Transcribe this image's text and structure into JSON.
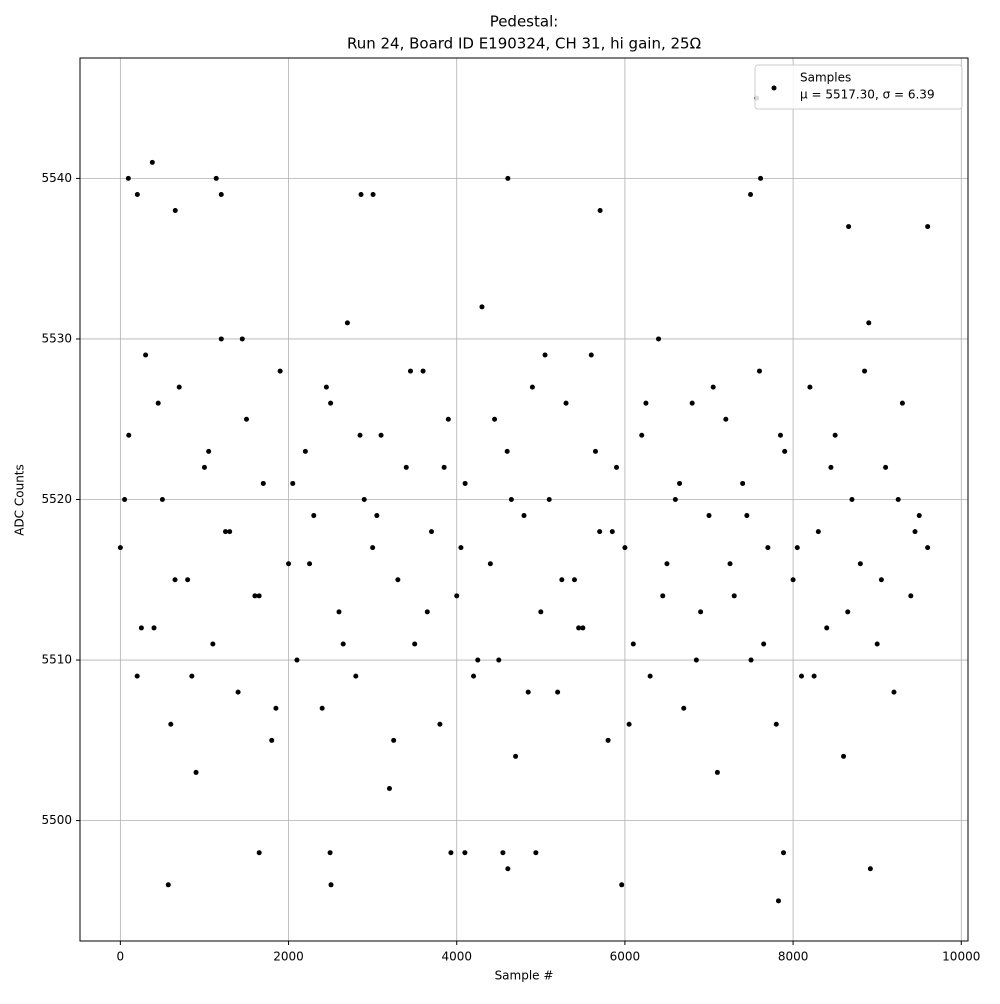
{
  "chart_data": {
    "type": "scatter",
    "title": "Pedestal:",
    "subtitle": "Run 24, Board ID E190324, CH 31, hi gain, 25Ω",
    "x_label": "Sample #",
    "y_label": "ADC Counts",
    "xlim": [
      -480,
      10080
    ],
    "ylim": [
      5492.5,
      5547.5
    ],
    "xticks": [
      0,
      2000,
      4000,
      6000,
      8000,
      10000
    ],
    "yticks": [
      5500,
      5510,
      5520,
      5530,
      5540
    ],
    "grid": true,
    "legend": "upper right",
    "legend_note": "μ = 5517.30, σ = 6.39",
    "x": [
      0,
      100,
      200,
      300,
      400,
      500,
      600,
      700,
      800,
      900,
      1000,
      1100,
      1200,
      1300,
      1400,
      1500,
      1600,
      1700,
      1800,
      1900,
      2000,
      2100,
      2200,
      2300,
      2400,
      2500,
      2600,
      2700,
      2800,
      2900,
      3000,
      3100,
      3200,
      3300,
      3400,
      3500,
      3600,
      3700,
      3800,
      3900,
      4000,
      4100,
      4200,
      4300,
      4400,
      4500,
      4600,
      4700,
      4800,
      4900,
      5000,
      5100,
      5200,
      5300,
      5400,
      5500,
      5600,
      5700,
      5800,
      5900,
      6000,
      6100,
      6200,
      6300,
      6400,
      6500,
      6600,
      6700,
      6800,
      6900,
      7000,
      7100,
      7200,
      7300,
      7400,
      7500,
      7600,
      7700,
      7800,
      7900,
      8000,
      8100,
      8200,
      8300,
      8400,
      8500,
      8600,
      8700,
      8800,
      8900,
      9000,
      9100,
      9200,
      9300,
      9400,
      9500,
      9600,
      50,
      250,
      450,
      650,
      850,
      1050,
      1250,
      1450,
      1650,
      1850,
      2050,
      2250,
      2450,
      2650,
      2850,
      3050,
      3250,
      3450,
      3650,
      3850,
      4050,
      4250,
      4450,
      4650,
      4850,
      5050,
      5250,
      5450,
      5650,
      5850,
      6050,
      6250,
      6450,
      6650,
      6850,
      7050,
      7250,
      7450,
      7650,
      7850,
      8050,
      8250,
      8450,
      8650,
      8850,
      9050,
      9250,
      9450,
      95,
      380,
      1140,
      4608,
      7565,
      7613,
      570,
      2505,
      5962,
      7826,
      8919,
      4608,
      1651,
      2494,
      3931,
      4097,
      4549,
      4941,
      7886,
      202,
      2862,
      3005,
      7494,
      1200,
      653,
      5705,
      9600,
      8660
    ],
    "series": [
      {
        "name": "Samples",
        "color": "#000000",
        "values": [
          5517,
          5524,
          5509,
          5529,
          5512,
          5520,
          5506,
          5527,
          5515,
          5503,
          5522,
          5511,
          5530,
          5518,
          5508,
          5525,
          5514,
          5521,
          5505,
          5528,
          5516,
          5510,
          5523,
          5519,
          5507,
          5526,
          5513,
          5531,
          5509,
          5520,
          5517,
          5524,
          5502,
          5515,
          5522,
          5511,
          5528,
          5518,
          5506,
          5525,
          5514,
          5521,
          5509,
          5532,
          5516,
          5510,
          5523,
          5504,
          5519,
          5527,
          5513,
          5520,
          5508,
          5526,
          5515,
          5512,
          5529,
          5518,
          5505,
          5522,
          5517,
          5511,
          5524,
          5509,
          5530,
          5516,
          5520,
          5507,
          5526,
          5513,
          5519,
          5503,
          5525,
          5514,
          5521,
          5510,
          5528,
          5517,
          5506,
          5523,
          5515,
          5509,
          5527,
          5518,
          5512,
          5524,
          5504,
          5520,
          5516,
          5531,
          5511,
          5522,
          5508,
          5526,
          5514,
          5519,
          5517,
          5520,
          5512,
          5526,
          5515,
          5509,
          5523,
          5518,
          5530,
          5514,
          5507,
          5521,
          5516,
          5527,
          5511,
          5524,
          5519,
          5505,
          5528,
          5513,
          5522,
          5517,
          5510,
          5525,
          5520,
          5508,
          5529,
          5515,
          5512,
          5523,
          5518,
          5506,
          5526,
          5514,
          5521,
          5510,
          5527,
          5516,
          5519,
          5511,
          5524,
          5517,
          5509,
          5522,
          5513,
          5528,
          5515,
          5520,
          5518,
          5540,
          5541,
          5540,
          5540,
          5545,
          5540,
          5496,
          5496,
          5496,
          5495,
          5497,
          5497,
          5498,
          5498,
          5498,
          5498,
          5498,
          5498,
          5498,
          5539,
          5539,
          5539,
          5539,
          5539,
          5538,
          5538,
          5537,
          5537
        ]
      }
    ]
  }
}
